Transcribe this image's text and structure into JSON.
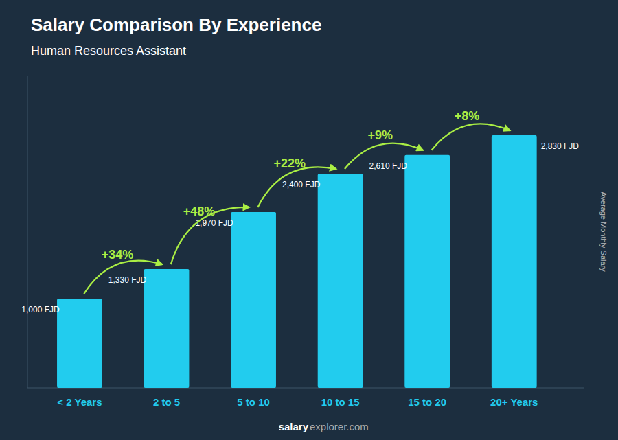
{
  "chart_data": {
    "type": "bar",
    "title": "Salary Comparison By Experience",
    "subtitle": "Human Resources Assistant",
    "categories": [
      "< 2 Years",
      "2 to 5",
      "5 to 10",
      "10 to 15",
      "15 to 20",
      "20+ Years"
    ],
    "values": [
      1000,
      1330,
      1970,
      2400,
      2610,
      2830
    ],
    "value_labels": [
      "1,000 FJD",
      "1,330 FJD",
      "1,970 FJD",
      "2,400 FJD",
      "2,610 FJD",
      "2,830 FJD"
    ],
    "data_labels": true,
    "annotations": [
      "+34%",
      "+48%",
      "+22%",
      "+9%",
      "+8%"
    ],
    "y_label": "Average Monthly Salary",
    "footer": [
      "salary",
      "explorer.com"
    ],
    "color": "#22ccee",
    "ylim": [
      0,
      3500
    ],
    "tick_labels": "x",
    "grid": false
  }
}
